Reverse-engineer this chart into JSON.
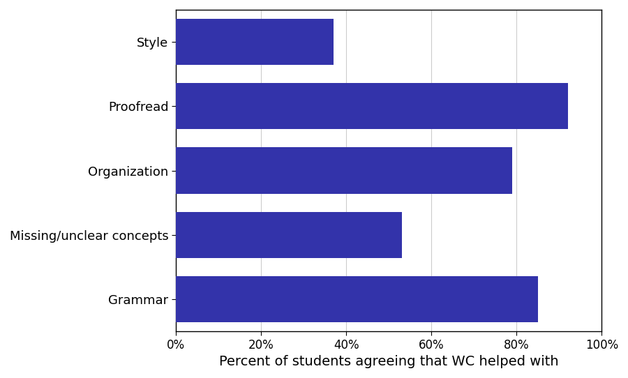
{
  "categories": [
    "Grammar",
    "Missing/unclear concepts",
    "Organization",
    "Proofread",
    "Style"
  ],
  "values": [
    85,
    53,
    79,
    92,
    37
  ],
  "bar_color": "#3333AA",
  "xlabel": "Percent of students agreeing that WC helped with",
  "xlim": [
    0,
    100
  ],
  "xticks": [
    0,
    20,
    40,
    60,
    80,
    100
  ],
  "xtick_labels": [
    "0%",
    "20%",
    "40%",
    "60%",
    "80%",
    "100%"
  ],
  "background_color": "#ffffff",
  "grid_color": "#cccccc",
  "xlabel_fontsize": 14,
  "tick_fontsize": 12,
  "ytick_fontsize": 13,
  "bar_height": 0.72
}
